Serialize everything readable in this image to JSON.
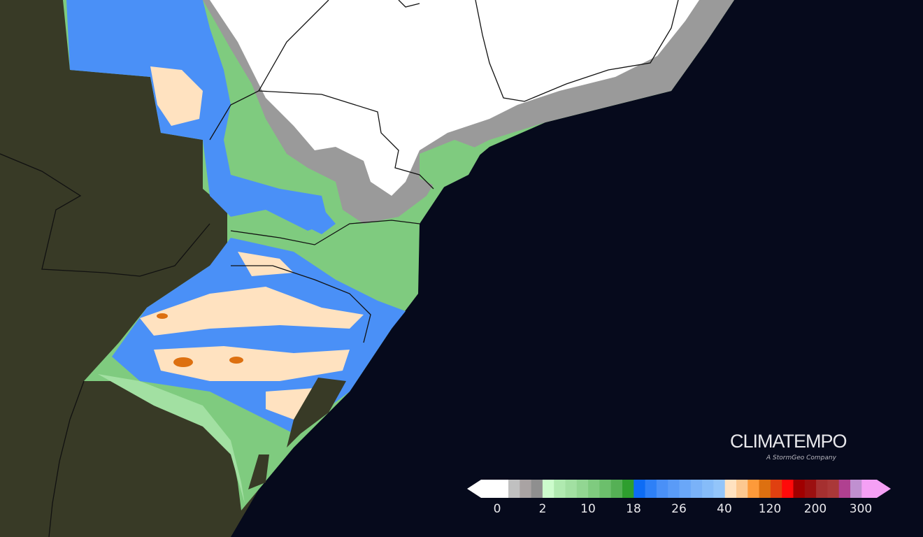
{
  "map": {
    "ocean_color": "#060a1c",
    "land_color": "#383a26",
    "precip_colors": {
      "white": "#ffffff",
      "gray": "#9a9a9a",
      "green": "#7fcb7f",
      "dark_green": "#55b055",
      "blue": "#4a90f7",
      "light_blue": "#86bcf9",
      "peach": "#ffe2c0",
      "orange": "#dd7010"
    }
  },
  "branding": {
    "name": "CLIMATEMPO",
    "tagline": "A StormGeo Company"
  },
  "legend": {
    "colors": [
      "#ffffff",
      "#c0c0c0",
      "#a9a3a3",
      "#8f8f8f",
      "#ccfccc",
      "#b0eab0",
      "#a2e0a2",
      "#92d692",
      "#7fcb7f",
      "#6cbf6c",
      "#55b055",
      "#2e9e2e",
      "#0d6cf5",
      "#2e80f7",
      "#4a90f7",
      "#5a9bf7",
      "#6aa7f8",
      "#7ab2f8",
      "#86bcf9",
      "#93c5fa",
      "#ffe2c0",
      "#fcc890",
      "#fd9a3a",
      "#dd7010",
      "#e04010",
      "#ff0a0a",
      "#a00000",
      "#9c1010",
      "#a53030",
      "#aa3838",
      "#b04090",
      "#c090d0",
      "#f5a0f5"
    ],
    "ticks": [
      "0",
      "2",
      "10",
      "18",
      "26",
      "40",
      "120",
      "200",
      "300"
    ]
  }
}
